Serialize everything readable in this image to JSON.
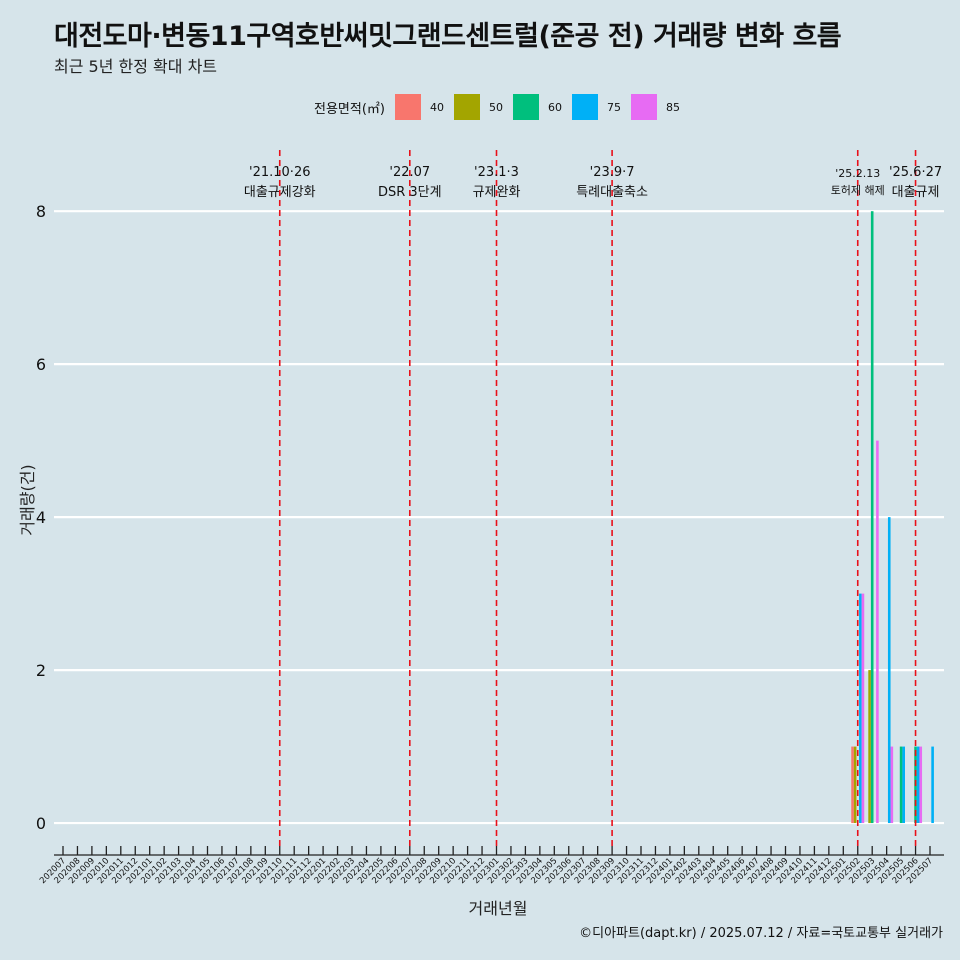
{
  "title": "대전도마·변동11구역호반써밋그랜드센트럴(준공 전) 거래량 변화 흐름",
  "subtitle": "최근 5년 한정 확대 차트",
  "caption": "©디아파트(dapt.kr) / 2025.07.12 / 자료=국토교통부 실거래가",
  "legend": {
    "title": "전용면적(㎡)",
    "items": [
      {
        "label": "40",
        "color": "#f8766d"
      },
      {
        "label": "50",
        "color": "#a3a500"
      },
      {
        "label": "60",
        "color": "#00bf7d"
      },
      {
        "label": "75",
        "color": "#00b0f6"
      },
      {
        "label": "85",
        "color": "#e76bf3"
      }
    ]
  },
  "chart_data": {
    "type": "bar",
    "xlabel": "거래년월",
    "ylabel": "거래량(건)",
    "ylim": [
      -0.3,
      8.8
    ],
    "yticks": [
      0,
      2,
      4,
      6,
      8
    ],
    "grid": true,
    "categories": [
      "202007",
      "202008",
      "202009",
      "202010",
      "202011",
      "202012",
      "202101",
      "202102",
      "202103",
      "202104",
      "202105",
      "202106",
      "202107",
      "202108",
      "202109",
      "202110",
      "202111",
      "202112",
      "202201",
      "202202",
      "202203",
      "202204",
      "202205",
      "202206",
      "202207",
      "202208",
      "202209",
      "202210",
      "202211",
      "202212",
      "202301",
      "202302",
      "202303",
      "202304",
      "202305",
      "202306",
      "202307",
      "202308",
      "202309",
      "202310",
      "202311",
      "202312",
      "202401",
      "202402",
      "202403",
      "202404",
      "202405",
      "202406",
      "202407",
      "202408",
      "202409",
      "202410",
      "202411",
      "202412",
      "202501",
      "202502",
      "202503",
      "202504",
      "202505",
      "202506",
      "202507"
    ],
    "series": [
      {
        "name": "40",
        "color": "#f8766d",
        "points": [
          {
            "x": "202502",
            "y": 1
          }
        ]
      },
      {
        "name": "50",
        "color": "#a3a500",
        "points": [
          {
            "x": "202502",
            "y": 1
          },
          {
            "x": "202503",
            "y": 2
          }
        ]
      },
      {
        "name": "60",
        "color": "#00bf7d",
        "points": [
          {
            "x": "202503",
            "y": 8
          },
          {
            "x": "202505",
            "y": 1
          },
          {
            "x": "202506",
            "y": 1
          }
        ]
      },
      {
        "name": "75",
        "color": "#00b0f6",
        "points": [
          {
            "x": "202502",
            "y": 3
          },
          {
            "x": "202504",
            "y": 4
          },
          {
            "x": "202505",
            "y": 1
          },
          {
            "x": "202506",
            "y": 1
          },
          {
            "x": "202507",
            "y": 1
          }
        ]
      },
      {
        "name": "85",
        "color": "#e76bf3",
        "points": [
          {
            "x": "202502",
            "y": 3
          },
          {
            "x": "202503",
            "y": 5
          },
          {
            "x": "202504",
            "y": 1
          },
          {
            "x": "202506",
            "y": 1
          }
        ]
      }
    ],
    "annotations": [
      {
        "x": "202110",
        "date": "'21.10·26",
        "text": "대출규제강화",
        "style": "regular"
      },
      {
        "x": "202207",
        "date": "'22.07",
        "text": "DSR 3단계",
        "style": "regular"
      },
      {
        "x": "202301",
        "date": "'23.1·3",
        "text": "규제완화",
        "style": "regular"
      },
      {
        "x": "202309",
        "date": "'23.9·7",
        "text": "특례대출축소",
        "style": "regular"
      },
      {
        "x": "202502",
        "date": "'25.2.13",
        "text": "토허제 해제",
        "style": "small"
      },
      {
        "x": "202506",
        "date": "'25.6·27",
        "text": "대출규제",
        "style": "regular"
      }
    ]
  }
}
